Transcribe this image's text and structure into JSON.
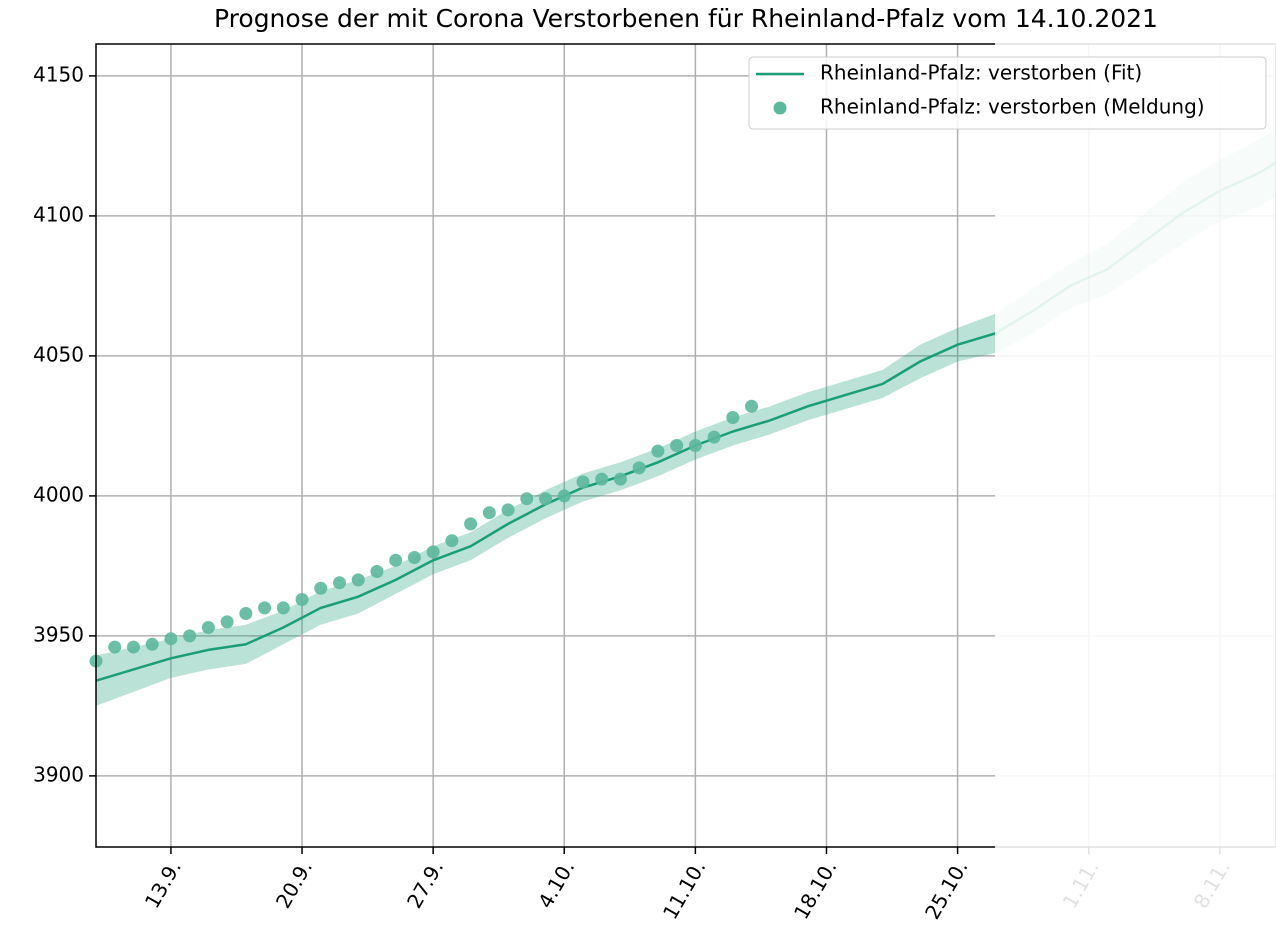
{
  "chart_data": {
    "type": "line",
    "title": "Prognose der mit Corona Verstorbenen für Rheinland-Pfalz vom 14.10.2021",
    "xlim": [
      "9.9.",
      "11.11."
    ],
    "xticks": [
      "13.9.",
      "20.9.",
      "27.9.",
      "4.10.",
      "11.10.",
      "18.10.",
      "25.10.",
      "1.11.",
      "8.11."
    ],
    "ylim": [
      3874.6,
      4161.4
    ],
    "yticks": [
      3900,
      3950,
      4000,
      4050,
      4100,
      4150
    ],
    "grid": true,
    "legend": "upper right",
    "faded_after": "27.10.",
    "series": [
      {
        "name": "Rheinland-Pfalz: verstorben (Fit)",
        "style": "line",
        "color": "#1b9e77",
        "x": [
          "9.9.",
          "11.9.",
          "13.9.",
          "15.9.",
          "17.9.",
          "19.9.",
          "21.9.",
          "23.9.",
          "25.9.",
          "27.9.",
          "29.9.",
          "1.10.",
          "3.10.",
          "5.10.",
          "7.10.",
          "9.10.",
          "11.10.",
          "13.10.",
          "15.10.",
          "17.10.",
          "19.10.",
          "21.10.",
          "23.10.",
          "25.10.",
          "27.10.",
          "29.10.",
          "31.10.",
          "2.11.",
          "4.11.",
          "6.11.",
          "8.11.",
          "10.11.",
          "11.11."
        ],
        "values": [
          3934,
          3938,
          3942,
          3945,
          3947,
          3953,
          3960,
          3964,
          3970,
          3977,
          3982,
          3990,
          3997,
          4003,
          4007,
          4012,
          4018,
          4023,
          4027,
          4032,
          4036,
          4040,
          4048,
          4054,
          4058,
          4066,
          4075,
          4081,
          4091,
          4101,
          4109,
          4115,
          4119
        ],
        "lower": [
          3925,
          3930,
          3935,
          3938,
          3940,
          3947,
          3954,
          3958,
          3965,
          3972,
          3977,
          3985,
          3992,
          3998,
          4002,
          4007,
          4013,
          4018,
          4022,
          4027,
          4031,
          4035,
          4042,
          4048,
          4051,
          4058,
          4067,
          4072,
          4081,
          4090,
          4098,
          4103,
          4107
        ],
        "upper": [
          3943,
          3946,
          3949,
          3952,
          3954,
          3959,
          3966,
          3970,
          3975,
          3982,
          3987,
          3995,
          4002,
          4008,
          4012,
          4017,
          4023,
          4028,
          4032,
          4037,
          4041,
          4045,
          4054,
          4060,
          4065,
          4074,
          4083,
          4090,
          4101,
          4112,
          4120,
          4127,
          4131
        ]
      },
      {
        "name": "Rheinland-Pfalz: verstorben (Meldung)",
        "style": "scatter",
        "color": "#5cb89c",
        "x": [
          "9.9.",
          "10.9.",
          "11.9.",
          "12.9.",
          "13.9.",
          "14.9.",
          "15.9.",
          "16.9.",
          "17.9.",
          "18.9.",
          "19.9.",
          "20.9.",
          "21.9.",
          "22.9.",
          "23.9.",
          "24.9.",
          "25.9.",
          "26.9.",
          "27.9.",
          "28.9.",
          "29.9.",
          "30.9.",
          "1.10.",
          "2.10.",
          "3.10.",
          "4.10.",
          "5.10.",
          "6.10.",
          "7.10.",
          "8.10.",
          "9.10.",
          "10.10.",
          "11.10.",
          "12.10.",
          "13.10.",
          "14.10."
        ],
        "values": [
          3941,
          3946,
          3946,
          3947,
          3949,
          3950,
          3953,
          3955,
          3958,
          3960,
          3960,
          3963,
          3967,
          3969,
          3970,
          3973,
          3977,
          3978,
          3980,
          3984,
          3990,
          3994,
          3995,
          3999,
          3999,
          4000,
          4005,
          4006,
          4006,
          4010,
          4016,
          4018,
          4018,
          4021,
          4028,
          4032
        ]
      }
    ]
  }
}
